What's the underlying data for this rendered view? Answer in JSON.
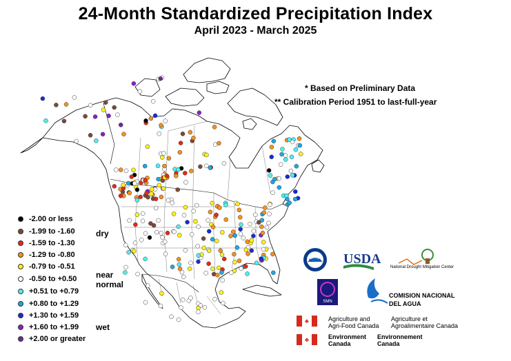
{
  "title": "24-Month Standardized Precipitation Index",
  "subtitle": "April 2023 - March 2025",
  "notes": {
    "preliminary": "* Based on Preliminary Data",
    "calibration": "** Calibration Period 1951 to last-full-year"
  },
  "legend": {
    "items": [
      {
        "label": "-2.00 or less",
        "color": "#000000"
      },
      {
        "label": "-1.99 to -1.60",
        "color": "#7b4a3a"
      },
      {
        "label": "-1.59 to -1.30",
        "color": "#e8281c"
      },
      {
        "label": "-1.29 to -0.80",
        "color": "#f5921e"
      },
      {
        "label": "-0.79 to -0.51",
        "color": "#fff21c"
      },
      {
        "label": "-0.50 to +0.50",
        "color": "#ffffff"
      },
      {
        "label": "+0.51 to +0.79",
        "color": "#4ff0f0"
      },
      {
        "label": "+0.80 to +1.29",
        "color": "#1fa8e0"
      },
      {
        "label": "+1.30 to +1.59",
        "color": "#1a2bd6"
      },
      {
        "label": "+1.60 to +1.99",
        "color": "#8a1ec8"
      },
      {
        "label": "+2.00 or greater",
        "color": "#6a2a9a"
      }
    ],
    "groups": {
      "dry": "dry",
      "near_normal_1": "near",
      "near_normal_2": "normal",
      "wet": "wet"
    }
  },
  "logos": {
    "noaa": "NOAA",
    "usda": "USDA",
    "ndmc": "National Drought Mitigation Center",
    "smn": "SMN",
    "conagua_1": "COMISION NACIONAL",
    "conagua_2": "DEL AGUA",
    "aafc_en_1": "Agriculture and",
    "aafc_en_2": "Agri-Food Canada",
    "aafc_fr_1": "Agriculture et",
    "aafc_fr_2": "Agroalimentaire Canada",
    "ec_en_1": "Environment",
    "ec_en_2": "Canada",
    "ec_fr_1": "Environnement",
    "ec_fr_2": "Canada"
  }
}
